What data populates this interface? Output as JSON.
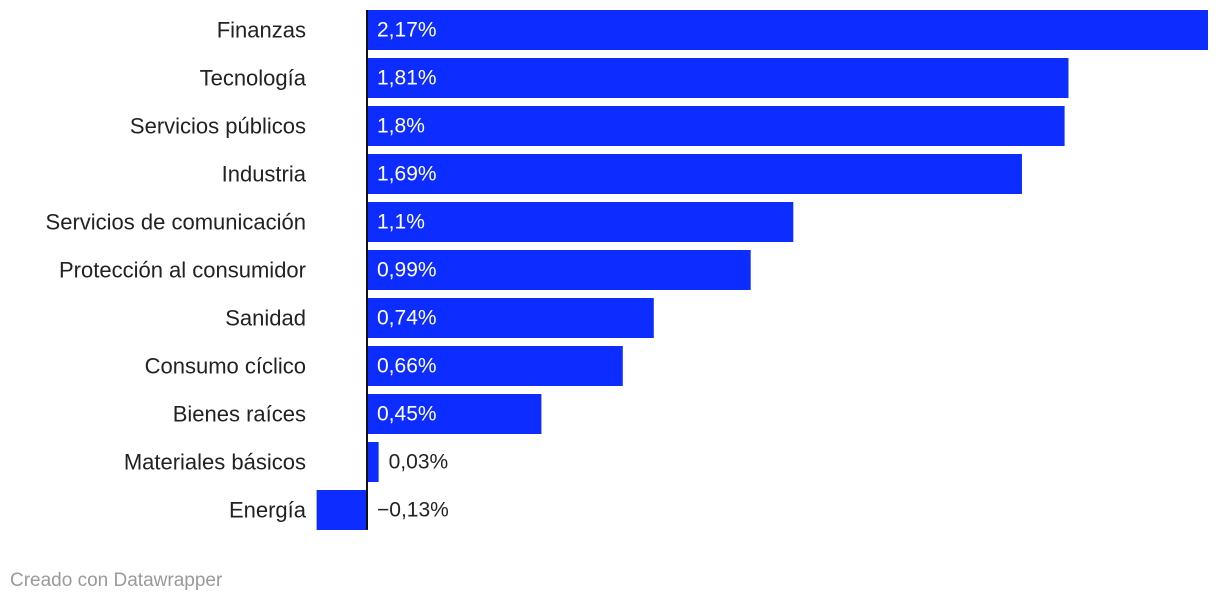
{
  "chart_data": {
    "type": "bar",
    "orientation": "horizontal",
    "categories": [
      "Finanzas",
      "Tecnología",
      "Servicios públicos",
      "Industria",
      "Servicios de comunicación",
      "Protección al consumidor",
      "Sanidad",
      "Consumo cíclico",
      "Bienes raíces",
      "Materiales básicos",
      "Energía"
    ],
    "values": [
      2.17,
      1.81,
      1.8,
      1.69,
      1.1,
      0.99,
      0.74,
      0.66,
      0.45,
      0.03,
      -0.13
    ],
    "value_labels": [
      "2,17%",
      "1,81%",
      "1,8%",
      "1,69%",
      "1,1%",
      "0,99%",
      "0,74%",
      "0,66%",
      "0,45%",
      "0,03%",
      "−0,13%"
    ],
    "xlim": [
      -0.13,
      2.17
    ],
    "bar_color": "#0d2cff",
    "label_inside_color": "#ffffff",
    "label_outside_color": "#222222",
    "axis_color": "#111111"
  },
  "footer": {
    "credit": "Creado con Datawrapper"
  }
}
